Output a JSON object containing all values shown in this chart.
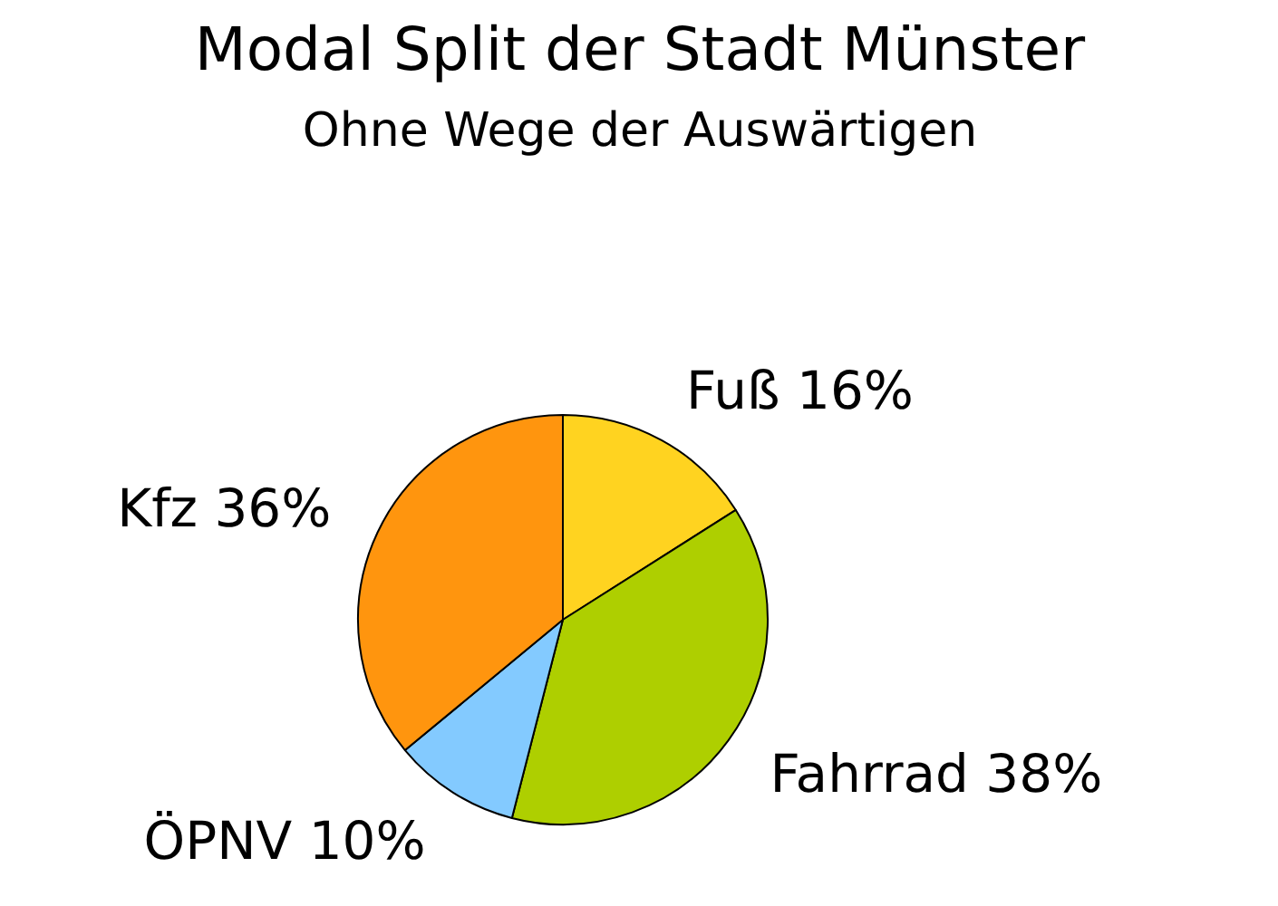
{
  "chart_data": {
    "type": "pie",
    "title": "Modal Split der Stadt Münster",
    "subtitle": "Ohne Wege der Auswärtigen",
    "categories": [
      "Fuß",
      "Fahrrad",
      "ÖPNV",
      "Kfz"
    ],
    "values": [
      16,
      38,
      10,
      36
    ],
    "colors": [
      "#ffd320",
      "#aecf00",
      "#83caff",
      "#ff950e"
    ],
    "value_labels": [
      "16%",
      "38%",
      "10%",
      "36%"
    ]
  }
}
